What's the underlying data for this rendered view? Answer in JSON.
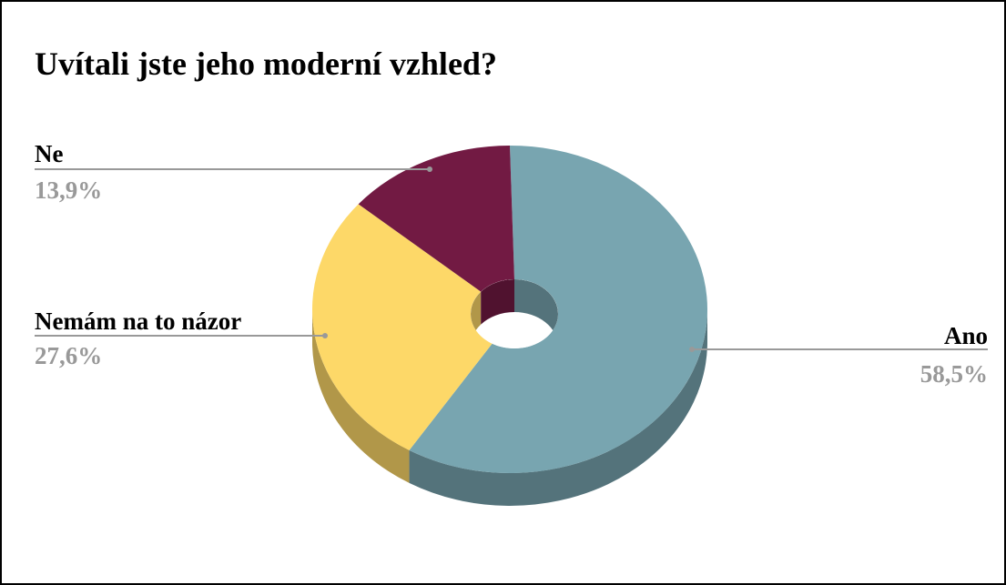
{
  "chart_data": {
    "type": "pie",
    "title": "Uvítali jste jeho moderní vzhled?",
    "categories": [
      "Ano",
      "Nemám na to názor",
      "Ne"
    ],
    "values": [
      58.5,
      27.6,
      13.9
    ],
    "value_labels": [
      "58,5%",
      "27,6%",
      "13,9%"
    ],
    "colors": [
      "#78a5b0",
      "#fdd868",
      "#721a43"
    ]
  }
}
